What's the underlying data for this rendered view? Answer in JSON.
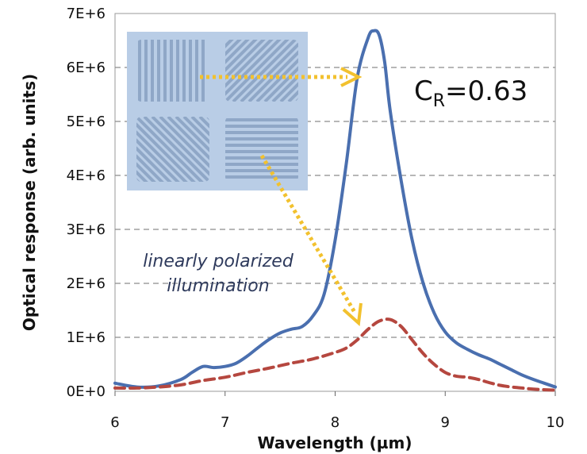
{
  "chart_data": {
    "type": "line",
    "xlabel": "Wavelength (µm)",
    "ylabel": "Optical response (arb. units)",
    "xlim": [
      6,
      10
    ],
    "ylim": [
      0,
      7000000
    ],
    "x_ticks": [
      "6",
      "7",
      "8",
      "9",
      "10"
    ],
    "y_ticks": [
      "0E+0",
      "1E+6",
      "2E+6",
      "3E+6",
      "4E+6",
      "5E+6",
      "6E+6",
      "7E+6"
    ],
    "grid": "horizontal dashed",
    "series": [
      {
        "style": "solid",
        "color": "#4a6faf",
        "x": [
          6.0,
          6.2,
          6.4,
          6.6,
          6.7,
          6.8,
          6.9,
          7.0,
          7.1,
          7.2,
          7.3,
          7.4,
          7.5,
          7.6,
          7.7,
          7.8,
          7.9,
          8.0,
          8.1,
          8.2,
          8.3,
          8.35,
          8.4,
          8.45,
          8.5,
          8.6,
          8.7,
          8.8,
          8.9,
          9.0,
          9.1,
          9.2,
          9.3,
          9.4,
          9.5,
          9.6,
          9.7,
          9.8,
          9.9,
          10.0
        ],
        "y": [
          150000,
          80000,
          100000,
          220000,
          350000,
          460000,
          440000,
          460000,
          520000,
          650000,
          810000,
          960000,
          1080000,
          1150000,
          1200000,
          1400000,
          1800000,
          2800000,
          4200000,
          5800000,
          6550000,
          6680000,
          6600000,
          6100000,
          5200000,
          3900000,
          2800000,
          2000000,
          1450000,
          1100000,
          900000,
          780000,
          680000,
          600000,
          500000,
          400000,
          300000,
          220000,
          150000,
          80000
        ]
      },
      {
        "style": "dashed",
        "color": "#b5473f",
        "x": [
          6.0,
          6.2,
          6.4,
          6.6,
          6.8,
          7.0,
          7.2,
          7.4,
          7.6,
          7.8,
          8.0,
          8.1,
          8.2,
          8.3,
          8.4,
          8.5,
          8.6,
          8.7,
          8.8,
          8.9,
          9.0,
          9.1,
          9.2,
          9.3,
          9.4,
          9.5,
          9.6,
          9.7,
          9.8,
          10.0
        ],
        "y": [
          60000,
          60000,
          80000,
          120000,
          200000,
          260000,
          350000,
          430000,
          520000,
          600000,
          720000,
          800000,
          950000,
          1150000,
          1300000,
          1330000,
          1200000,
          950000,
          700000,
          500000,
          350000,
          280000,
          260000,
          220000,
          160000,
          110000,
          80000,
          60000,
          40000,
          20000
        ]
      }
    ],
    "annotations": {
      "cr_main": "C",
      "cr_sub": "R",
      "cr_value": "=0.63",
      "illumination_line1": "linearly polarized",
      "illumination_line2": "illumination"
    }
  },
  "colors": {
    "arrow": "#f2c12e",
    "inset_bg": "#b9cde6",
    "grating": "#8fa7c7"
  }
}
